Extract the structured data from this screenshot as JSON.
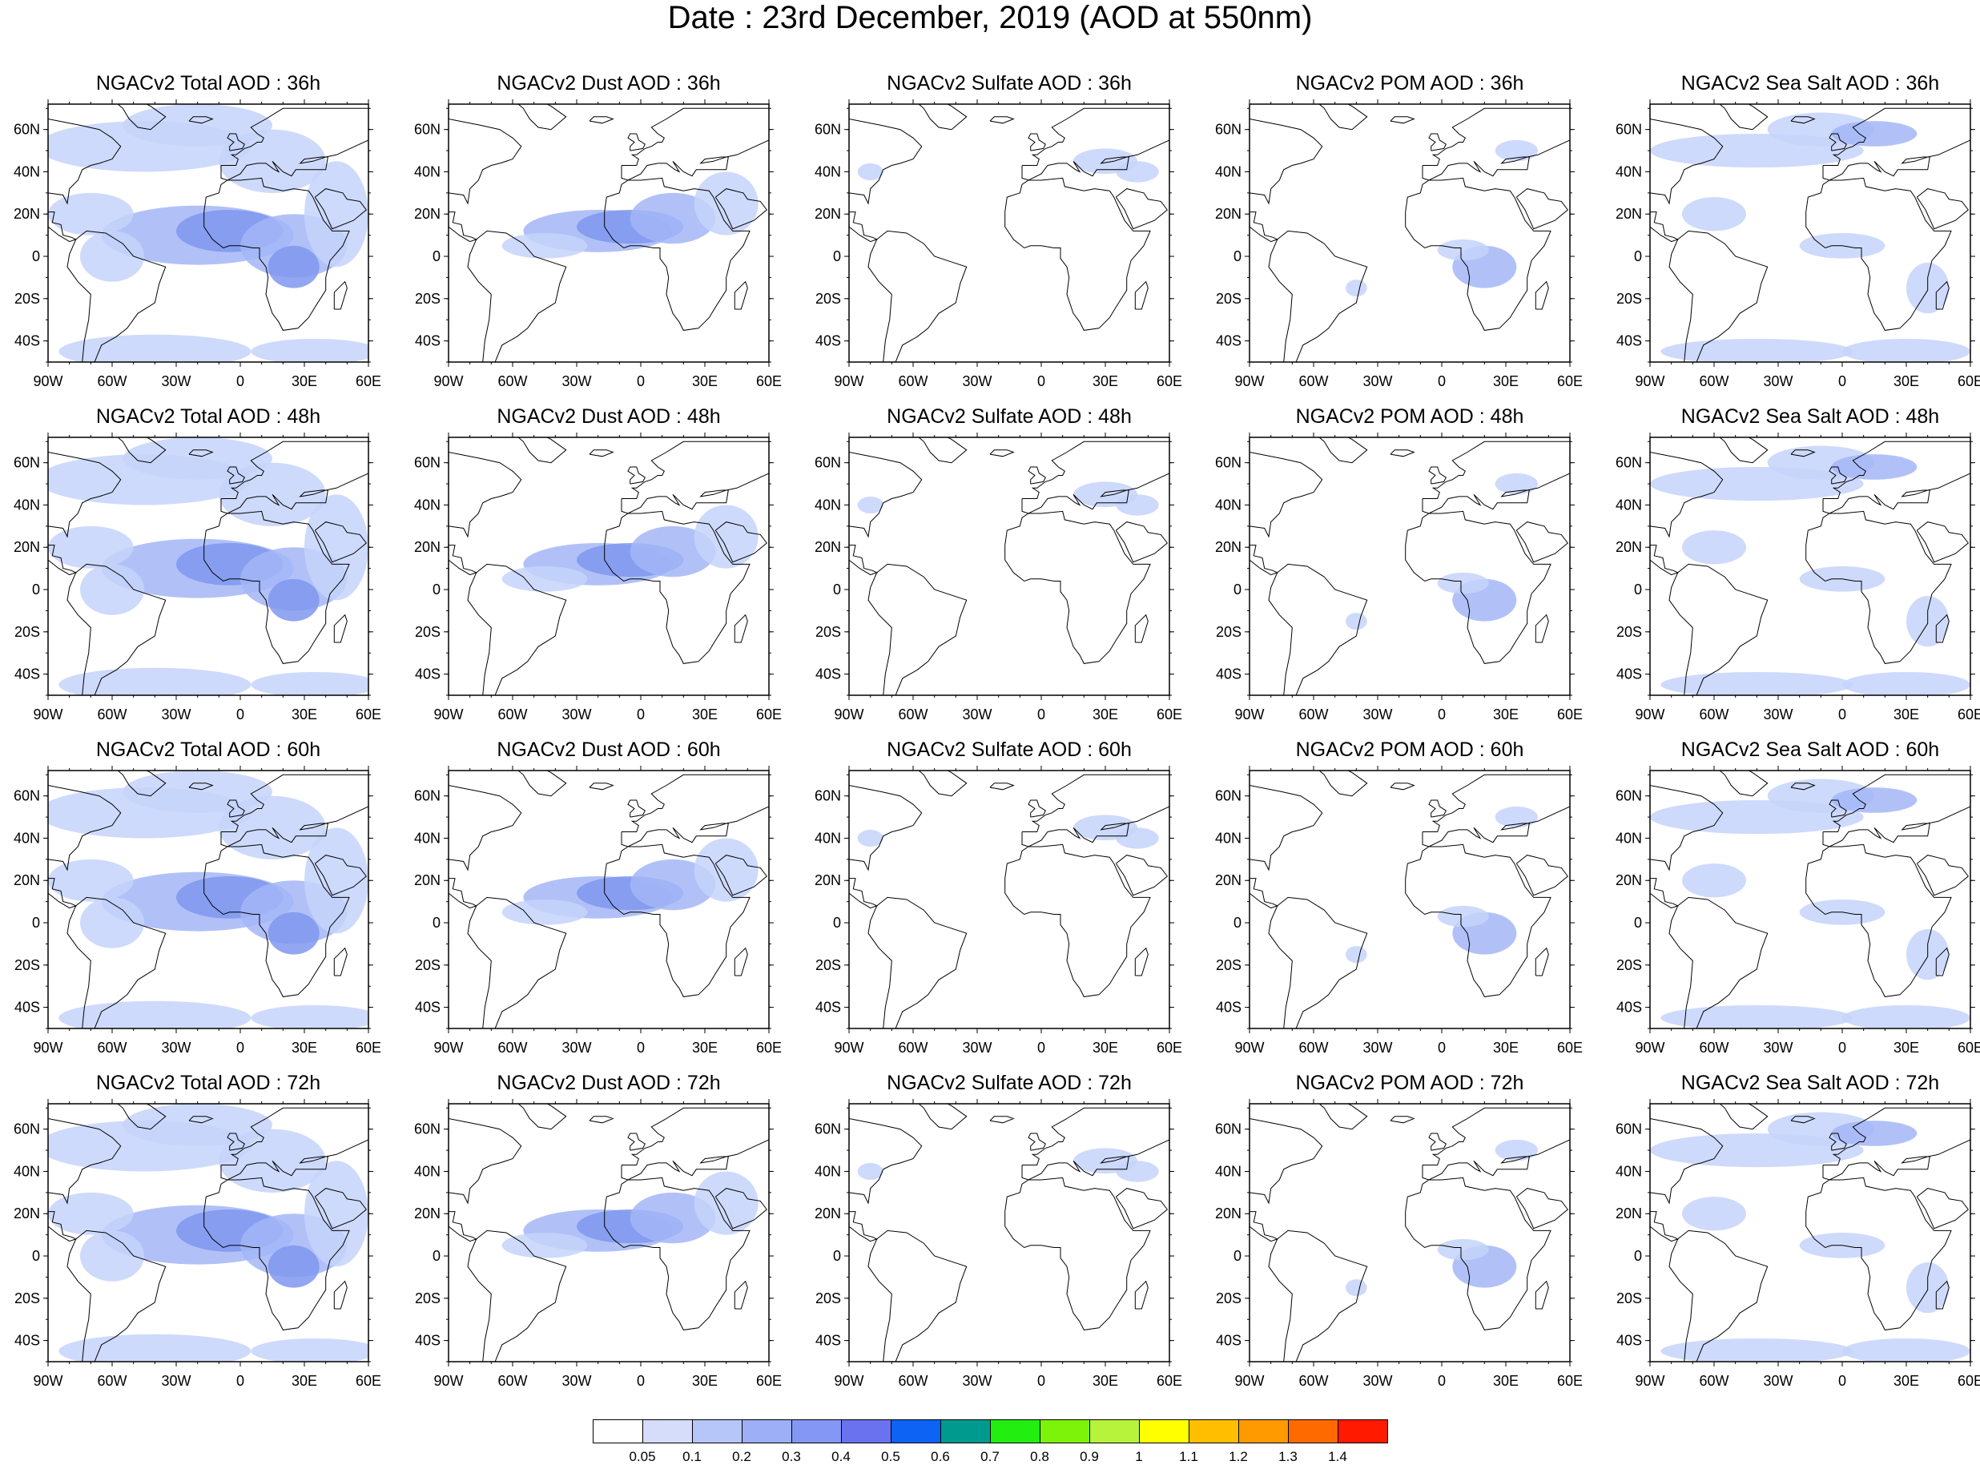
{
  "title": "Date : 23rd December, 2019 (AOD at 550nm)",
  "lat_labels": [
    "60N",
    "40N",
    "20N",
    "0",
    "20S",
    "40S"
  ],
  "lon_labels": [
    "90W",
    "60W",
    "30W",
    "0",
    "30E",
    "60E"
  ],
  "colors": {
    "frame": "#000000",
    "aod_light": "#c6d4fa",
    "aod_mid": "#a3b6f7",
    "aod_dark": "#7f97ef"
  },
  "rows": [
    {
      "panels": [
        {
          "title": "NGACv2 Total AOD : 36h",
          "kind": "total"
        },
        {
          "title": "NGACv2 Dust AOD : 36h",
          "kind": "dust"
        },
        {
          "title": "NGACv2 Sulfate AOD : 36h",
          "kind": "sulfate"
        },
        {
          "title": "NGACv2 POM AOD : 36h",
          "kind": "pom"
        },
        {
          "title": "NGACv2 Sea Salt AOD : 36h",
          "kind": "seasalt"
        }
      ]
    },
    {
      "panels": [
        {
          "title": "NGACv2 Total AOD : 48h",
          "kind": "total"
        },
        {
          "title": "NGACv2 Dust AOD : 48h",
          "kind": "dust"
        },
        {
          "title": "NGACv2 Sulfate AOD : 48h",
          "kind": "sulfate"
        },
        {
          "title": "NGACv2 POM AOD : 48h",
          "kind": "pom"
        },
        {
          "title": "NGACv2 Sea Salt AOD : 48h",
          "kind": "seasalt"
        }
      ]
    },
    {
      "panels": [
        {
          "title": "NGACv2 Total AOD : 60h",
          "kind": "total"
        },
        {
          "title": "NGACv2 Dust AOD : 60h",
          "kind": "dust"
        },
        {
          "title": "NGACv2 Sulfate AOD : 60h",
          "kind": "sulfate"
        },
        {
          "title": "NGACv2 POM AOD : 60h",
          "kind": "pom"
        },
        {
          "title": "NGACv2 Sea Salt AOD : 60h",
          "kind": "seasalt"
        }
      ]
    },
    {
      "panels": [
        {
          "title": "NGACv2 Total AOD : 72h",
          "kind": "total"
        },
        {
          "title": "NGACv2 Dust AOD : 72h",
          "kind": "dust"
        },
        {
          "title": "NGACv2 Sulfate AOD : 72h",
          "kind": "sulfate"
        },
        {
          "title": "NGACv2 POM AOD : 72h",
          "kind": "pom"
        },
        {
          "title": "NGACv2 Sea Salt  AOD : 72h",
          "kind": "seasalt"
        }
      ]
    }
  ],
  "colorbar": {
    "colors": [
      "#ffffff",
      "#d5ddfb",
      "#b7c6f9",
      "#9caff7",
      "#8497f4",
      "#6a72f0",
      "#0d63f3",
      "#009a8e",
      "#22ee10",
      "#7ef30a",
      "#b8f33c",
      "#ffff00",
      "#ffbe00",
      "#ff9a00",
      "#ff6a00",
      "#ff1a00"
    ],
    "labels": [
      "0.05",
      "0.1",
      "0.2",
      "0.3",
      "0.4",
      "0.5",
      "0.6",
      "0.7",
      "0.8",
      "0.9",
      "1",
      "1.1",
      "1.2",
      "1.3",
      "1.4"
    ]
  }
}
